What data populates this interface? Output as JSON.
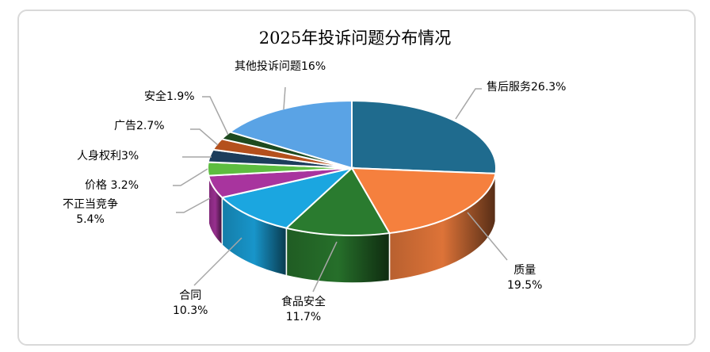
{
  "chart_data": {
    "type": "pie",
    "style": "3d",
    "title": "2025年投诉问题分布情况",
    "slices": [
      {
        "name": "售后服务",
        "value": 26.3,
        "label": "售后服务26.3%",
        "color": "#1f6b8e"
      },
      {
        "name": "质量",
        "value": 19.5,
        "label": "质量\n19.5%",
        "color": "#f5803e"
      },
      {
        "name": "食品安全",
        "value": 11.7,
        "label": "食品安全\n11.7%",
        "color": "#2a7b2f"
      },
      {
        "name": "合同",
        "value": 10.3,
        "label": "合同\n10.3%",
        "color": "#1ba6e0"
      },
      {
        "name": "不正当竞争",
        "value": 5.4,
        "label": "不正当竞争\n5.4%",
        "color": "#a8349e"
      },
      {
        "name": "价格",
        "value": 3.2,
        "label": "价格 3.2%",
        "color": "#5dbd40"
      },
      {
        "name": "人身权利",
        "value": 3,
        "label": "人身权利3%",
        "color": "#1c3d5c"
      },
      {
        "name": "广告",
        "value": 2.7,
        "label": "广告2.7%",
        "color": "#b4501d"
      },
      {
        "name": "安全",
        "value": 1.9,
        "label": "安全1.9%",
        "color": "#1e4a1f"
      },
      {
        "name": "其他投诉问题",
        "value": 16,
        "label": "其他投诉问题16%",
        "color": "#5aa3e5"
      }
    ],
    "legend": "none"
  }
}
